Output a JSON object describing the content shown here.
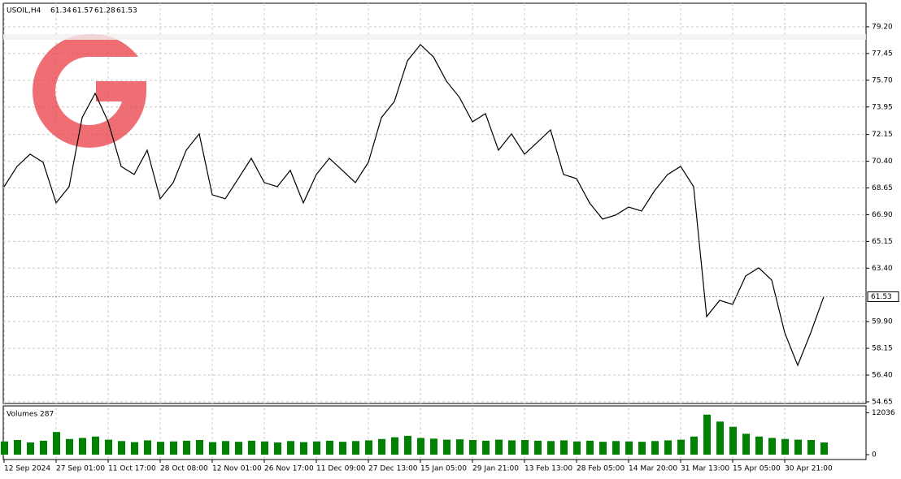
{
  "chart_data": [
    {
      "type": "line",
      "title": "USOIL,H4",
      "ohlc": [
        61.34,
        61.57,
        61.28,
        61.53
      ],
      "last_price": 61.53,
      "color": "#000000",
      "grid": true,
      "categories": [
        "12 Sep 2024",
        null,
        null,
        null,
        "27 Sep 01:00",
        null,
        null,
        null,
        "11 Oct 17:00",
        null,
        null,
        null,
        "28 Oct 08:00",
        null,
        null,
        null,
        "12 Nov 01:00",
        null,
        null,
        null,
        "26 Nov 17:00",
        null,
        null,
        null,
        "11 Dec 09:00",
        null,
        null,
        null,
        "27 Dec 13:00",
        null,
        null,
        null,
        "15 Jan 05:00",
        null,
        null,
        null,
        "29 Jan 21:00",
        null,
        null,
        null,
        "13 Feb 13:00",
        null,
        null,
        null,
        "28 Feb 05:00",
        null,
        null,
        null,
        "14 Mar 20:00",
        null,
        null,
        null,
        "31 Mar 13:00",
        null,
        null,
        null,
        "15 Apr 05:00",
        null,
        null,
        null,
        "30 Apr 21:00",
        null,
        null,
        null
      ],
      "values": [
        68.73,
        70.06,
        70.86,
        70.33,
        67.67,
        68.73,
        73.25,
        74.84,
        72.98,
        70.06,
        69.53,
        71.12,
        67.94,
        69.0,
        71.12,
        72.19,
        68.2,
        67.94,
        69.26,
        70.59,
        69.0,
        68.73,
        69.8,
        67.67,
        69.53,
        70.59,
        69.8,
        69.0,
        70.33,
        73.25,
        74.31,
        76.97,
        78.03,
        77.23,
        75.64,
        74.58,
        72.98,
        73.51,
        71.12,
        72.19,
        70.86,
        71.65,
        72.45,
        69.53,
        69.26,
        67.67,
        66.61,
        66.87,
        67.4,
        67.14,
        68.47,
        69.53,
        70.06,
        68.73,
        60.23,
        61.29,
        61.03,
        62.89,
        63.42,
        62.62,
        59.17,
        57.04,
        59.17,
        61.53
      ],
      "ylim": [
        54.54,
        80.74
      ],
      "yticks": [
        {
          "value": 79.2,
          "label": "79.20"
        },
        77.45,
        {
          "value": 75.7,
          "label": "75.70"
        },
        73.95,
        72.15,
        {
          "value": 70.4,
          "label": "70.40"
        },
        68.65,
        {
          "value": 66.9,
          "label": "66.90"
        },
        65.15,
        {
          "value": 63.4,
          "label": "63.40"
        },
        {
          "value": 59.9,
          "label": "59.90"
        },
        58.15,
        {
          "value": 56.4,
          "label": "56.40"
        },
        54.65
      ]
    },
    {
      "type": "bar",
      "title": "Volumes 287",
      "color": "#008000",
      "values": [
        3800,
        4200,
        3500,
        4000,
        6500,
        4500,
        4800,
        5200,
        4300,
        3900,
        3600,
        4100,
        3700,
        3800,
        4000,
        4200,
        3600,
        3900,
        3700,
        4000,
        3800,
        3500,
        3900,
        3600,
        3800,
        4000,
        3700,
        3900,
        4100,
        4500,
        5000,
        5400,
        4800,
        4600,
        4300,
        4400,
        4200,
        4000,
        4300,
        4100,
        4200,
        4000,
        3900,
        4100,
        3800,
        4000,
        3700,
        3900,
        3800,
        3700,
        3900,
        4100,
        4300,
        5200,
        11500,
        9500,
        8000,
        6000,
        5200,
        4800,
        4500,
        4300,
        4200,
        3500
      ],
      "ylim": [
        0,
        14000
      ],
      "yticks": [
        12036,
        0
      ]
    }
  ]
}
